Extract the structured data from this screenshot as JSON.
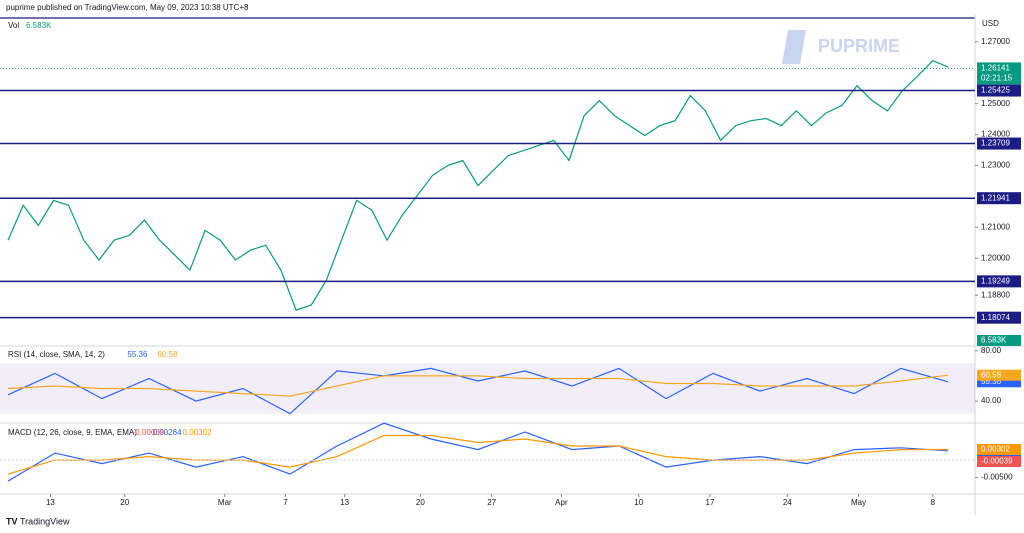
{
  "header": "puprime published on TradingView.com, May 09, 2023 10:38 UTC+8",
  "logo": "PUPRIME",
  "footer": "TradingView",
  "chart_data": [
    {
      "type": "line",
      "currency": "USD",
      "volume_label": "Vol",
      "volume_value": "6.583K",
      "color": "#089981",
      "values": [
        1.2058,
        1.2171,
        1.2106,
        1.2187,
        1.2171,
        1.2058,
        1.1994,
        1.2058,
        1.2074,
        1.2123,
        1.2058,
        1.201,
        1.1961,
        1.209,
        1.2058,
        1.1994,
        1.2026,
        1.2042,
        1.1961,
        1.1832,
        1.1848,
        1.1929,
        1.2058,
        1.2187,
        1.2155,
        1.2058,
        1.2139,
        1.2203,
        1.2268,
        1.23,
        1.2316,
        1.2235,
        1.2284,
        1.2332,
        1.2348,
        1.2365,
        1.2381,
        1.2316,
        1.2461,
        1.251,
        1.2461,
        1.2429,
        1.2397,
        1.2429,
        1.2445,
        1.2526,
        1.2477,
        1.2381,
        1.2429,
        1.2445,
        1.2452,
        1.2429,
        1.2477,
        1.2429,
        1.2471,
        1.2494,
        1.2558,
        1.251,
        1.2477,
        1.2542,
        1.259,
        1.2639,
        1.2619
      ],
      "ylim": [
        1.1719,
        1.2774
      ],
      "yticks": [
        {
          "value": 1.27,
          "label": "1.27000"
        },
        {
          "value": 1.25,
          "label": "1.25000"
        },
        {
          "value": 1.24,
          "label": "1.24000"
        },
        {
          "value": 1.23,
          "label": "1.23000"
        },
        {
          "value": 1.21,
          "label": "1.21000"
        },
        {
          "value": 1.2,
          "label": "1.20000"
        },
        {
          "value": 1.188,
          "label": "1.18800"
        }
      ],
      "xticks": [
        {
          "value": 2.8,
          "label": "13"
        },
        {
          "value": 7.7,
          "label": "20"
        },
        {
          "value": 14.3,
          "label": "Mar"
        },
        {
          "value": 18.3,
          "label": "7"
        },
        {
          "value": 22.2,
          "label": "13"
        },
        {
          "value": 27.2,
          "label": "20"
        },
        {
          "value": 31.9,
          "label": "27"
        },
        {
          "value": 36.5,
          "label": "Apr"
        },
        {
          "value": 41.6,
          "label": "10"
        },
        {
          "value": 46.3,
          "label": "17"
        },
        {
          "value": 51.4,
          "label": "24"
        },
        {
          "value": 56.1,
          "label": "May"
        },
        {
          "value": 61.0,
          "label": "8"
        }
      ],
      "levels": [
        1.25425,
        1.23709,
        1.21941,
        1.19249,
        1.18074
      ],
      "level_color": "#1c1c85",
      "last_price": 1.26141,
      "countdown": "02:21:15"
    },
    {
      "type": "line",
      "title": "RSI (14, close, SMA, 14, 2)",
      "ylim": [
        25,
        83
      ],
      "yticks": [
        {
          "value": 80,
          "label": "80.00"
        },
        {
          "value": 40,
          "label": "40.00"
        }
      ],
      "band": [
        30,
        70
      ],
      "series": [
        {
          "color": "#2962ff",
          "values": [
            45,
            62,
            42,
            58,
            40,
            50,
            30,
            64,
            60,
            66,
            56,
            64,
            52,
            66,
            42,
            62,
            48,
            58,
            46,
            66,
            55.36
          ]
        },
        {
          "color": "#f5a623",
          "values": [
            50,
            52,
            50,
            50,
            48,
            46,
            44,
            52,
            60,
            60,
            60,
            58,
            58,
            58,
            54,
            54,
            52,
            52,
            52,
            56,
            60.58
          ]
        }
      ]
    },
    {
      "type": "line",
      "title": "MACD (12, 26, close, 9, EMA, EMA)",
      "ylim": [
        -0.0091,
        0.01
      ],
      "yticks": [
        {
          "value": -0.005,
          "label": "-0.00500"
        }
      ],
      "histogram_last": -0.00039,
      "series": [
        {
          "color": "#2962ff",
          "values": [
            -0.006,
            0.002,
            -0.001,
            0.002,
            -0.002,
            0.001,
            -0.004,
            0.004,
            0.0105,
            0.006,
            0.003,
            0.008,
            0.003,
            0.004,
            -0.002,
            0.0,
            0.001,
            -0.001,
            0.003,
            0.0035,
            0.00264
          ]
        },
        {
          "color": "#ff9800",
          "values": [
            -0.004,
            0.0,
            0.0,
            0.001,
            0.0,
            0.0,
            -0.002,
            0.001,
            0.007,
            0.007,
            0.005,
            0.006,
            0.004,
            0.004,
            0.001,
            0.0,
            0.0,
            0.0,
            0.002,
            0.003,
            0.00302
          ]
        }
      ]
    }
  ]
}
